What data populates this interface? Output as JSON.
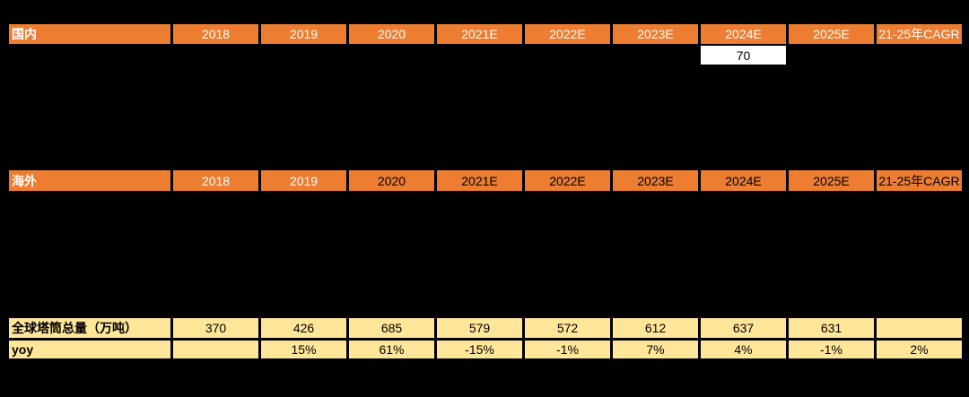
{
  "colors": {
    "background": "#000000",
    "header_orange": "#ED7D31",
    "summary_cream": "#FFE699",
    "note_cell_white": "#FFFFFF",
    "grid_line": "#000000",
    "text_white": "#FFFFFF",
    "text_black": "#000000"
  },
  "domestic": {
    "label": "国内",
    "cells": [
      {
        "text": "2018",
        "fg": "#FFFFFF"
      },
      {
        "text": "2019",
        "fg": "#FFFFFF"
      },
      {
        "text": "2020",
        "fg": "#FFFFFF"
      },
      {
        "text": "2021E",
        "fg": "#FFFFFF"
      },
      {
        "text": "2022E",
        "fg": "#FFFFFF"
      },
      {
        "text": "2023E",
        "fg": "#FFFFFF"
      },
      {
        "text": "2024E",
        "fg": "#FFFFFF"
      },
      {
        "text": "2025E",
        "fg": "#FFFFFF"
      },
      {
        "text": "21-25年CAGR",
        "fg": "#FFFFFF"
      }
    ],
    "note": {
      "value": "70",
      "under_column": "2024E"
    }
  },
  "overseas": {
    "label": "海外",
    "cells": [
      {
        "text": "2018",
        "fg": "#FFFFFF"
      },
      {
        "text": "2019",
        "fg": "#FFFFFF"
      },
      {
        "text": "2020",
        "fg": "#000000"
      },
      {
        "text": "2021E",
        "fg": "#000000"
      },
      {
        "text": "2022E",
        "fg": "#000000"
      },
      {
        "text": "2023E",
        "fg": "#000000"
      },
      {
        "text": "2024E",
        "fg": "#000000"
      },
      {
        "text": "2025E",
        "fg": "#000000"
      },
      {
        "text": "21-25年CAGR",
        "fg": "#000000"
      }
    ]
  },
  "summary": {
    "rows": [
      {
        "label": "全球塔筒总量（万吨）",
        "values": [
          "370",
          "426",
          "685",
          "579",
          "572",
          "612",
          "637",
          "631",
          ""
        ]
      },
      {
        "label": "yoy",
        "values": [
          "",
          "15%",
          "61%",
          "-15%",
          "-1%",
          "7%",
          "4%",
          "-1%",
          "2%"
        ]
      }
    ]
  },
  "chart_data": {
    "type": "table",
    "title": "",
    "categories": [
      "2018",
      "2019",
      "2020",
      "2021E",
      "2022E",
      "2023E",
      "2024E",
      "2025E",
      "21-25年CAGR"
    ],
    "sections": [
      {
        "name": "国内",
        "rows_visible": false,
        "unredacted_value": {
          "column": "2024E",
          "value": 70
        }
      },
      {
        "name": "海外",
        "rows_visible": false
      }
    ],
    "series": [
      {
        "name": "全球塔筒总量（万吨）",
        "values": [
          370,
          426,
          685,
          579,
          572,
          612,
          637,
          631,
          null
        ]
      },
      {
        "name": "yoy",
        "values": [
          null,
          "15%",
          "61%",
          "-15%",
          "-1%",
          "7%",
          "4%",
          "-1%",
          "2%"
        ]
      }
    ],
    "layout": {
      "grid": "black gridlines on black background",
      "header_fill": "#ED7D31",
      "body_fill": "#FFE699"
    }
  }
}
